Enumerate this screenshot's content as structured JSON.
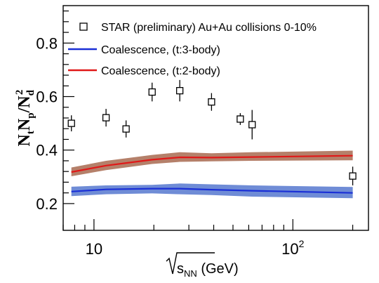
{
  "chart_data": {
    "type": "scatter",
    "xscale": "log",
    "xlim": [
      7,
      240
    ],
    "ylim": [
      0.1,
      0.94
    ],
    "x_ticks": [
      {
        "value": 10,
        "label": "10"
      },
      {
        "value": 100,
        "label": "10",
        "sup": "2"
      }
    ],
    "y_ticks": [
      {
        "value": 0.2,
        "label": "0.2"
      },
      {
        "value": 0.4,
        "label": "0.4"
      },
      {
        "value": 0.6,
        "label": "0.6"
      },
      {
        "value": 0.8,
        "label": "0.8"
      }
    ],
    "xlabel": {
      "main": "s",
      "sub": "NN",
      "unit": " (GeV)"
    },
    "ylabel": "N_t N_p / N_d^2",
    "legend": {
      "placement": "top",
      "entries": [
        {
          "text": "STAR (preliminary) Au+Au collisions 0-10%",
          "marker": "open-square"
        },
        {
          "text": "Coalescence, (t:3-body)",
          "marker": "line",
          "color": "#1a2fd6"
        },
        {
          "text": "Coalescence, (t:2-body)",
          "marker": "line",
          "color": "#e01818"
        }
      ]
    },
    "series": [
      {
        "name": "STAR (preliminary) Au+Au collisions 0-10%",
        "kind": "points",
        "x": [
          7.7,
          11.5,
          14.5,
          19.6,
          27,
          39,
          54.4,
          62.4,
          200
        ],
        "y": [
          0.5,
          0.521,
          0.479,
          0.617,
          0.622,
          0.58,
          0.516,
          0.495,
          0.303
        ],
        "err": [
          0.03,
          0.033,
          0.032,
          0.035,
          0.04,
          0.033,
          0.022,
          0.055,
          0.035
        ]
      },
      {
        "name": "Coalescence, (t:3-body)",
        "kind": "band",
        "color": "#1a2fd6",
        "band_color": "#6f8cd6",
        "x": [
          7.7,
          11.5,
          19.6,
          27,
          39,
          62.4,
          200
        ],
        "y": [
          0.245,
          0.253,
          0.256,
          0.256,
          0.252,
          0.248,
          0.24
        ],
        "lower": [
          0.228,
          0.235,
          0.238,
          0.235,
          0.232,
          0.226,
          0.22
        ],
        "upper": [
          0.263,
          0.268,
          0.27,
          0.275,
          0.272,
          0.268,
          0.262
        ]
      },
      {
        "name": "Coalescence, (t:2-body)",
        "kind": "band",
        "color": "#e01818",
        "band_color": "#b5806a",
        "x": [
          7.7,
          11.5,
          19.6,
          27,
          39,
          62.4,
          200
        ],
        "y": [
          0.318,
          0.342,
          0.364,
          0.373,
          0.372,
          0.374,
          0.379
        ],
        "lower": [
          0.302,
          0.325,
          0.348,
          0.356,
          0.358,
          0.36,
          0.362
        ],
        "upper": [
          0.335,
          0.36,
          0.382,
          0.392,
          0.388,
          0.392,
          0.398
        ]
      }
    ]
  }
}
